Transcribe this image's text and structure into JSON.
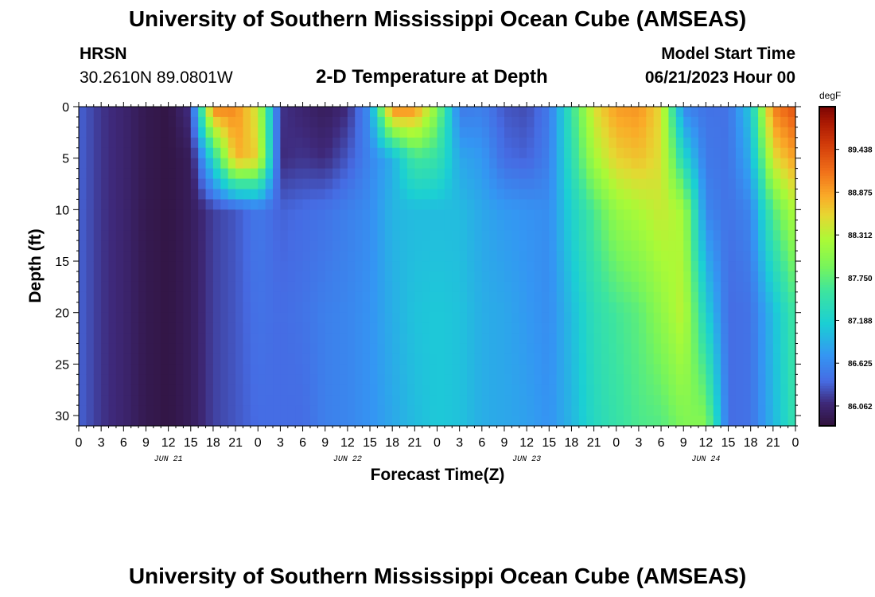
{
  "header": {
    "title": "University of Southern Mississippi Ocean Cube (AMSEAS)",
    "station": "HRSN",
    "location": "30.2610N  89.0801W",
    "subtitle": "2-D Temperature at Depth",
    "model_start_label": "Model Start Time",
    "model_start_value": "06/21/2023 Hour 00"
  },
  "footer": {
    "title": "University of Southern Mississippi Ocean Cube (AMSEAS)"
  },
  "chart_data": {
    "type": "heatmap",
    "title": "2-D Temperature at Depth",
    "xlabel": "Forecast Time(Z)",
    "ylabel": "Depth (ft)",
    "x_range_hours": [
      0,
      96
    ],
    "x_tick_step_hours": 3,
    "x_tick_labels": [
      "0",
      "3",
      "6",
      "9",
      "12",
      "15",
      "18",
      "21",
      "0",
      "3",
      "6",
      "9",
      "12",
      "15",
      "18",
      "21",
      "0",
      "3",
      "6",
      "9",
      "12",
      "15",
      "18",
      "21",
      "0",
      "3",
      "6",
      "9",
      "12",
      "15",
      "18",
      "21",
      "0"
    ],
    "day_labels": [
      {
        "label": "JUN 21",
        "hour": 12
      },
      {
        "label": "JUN 22",
        "hour": 36
      },
      {
        "label": "JUN 23",
        "hour": 60
      },
      {
        "label": "JUN 24",
        "hour": 84
      }
    ],
    "y_range_ft": [
      0,
      31
    ],
    "y_ticks": [
      0,
      5,
      10,
      15,
      20,
      25,
      30
    ],
    "colorbar": {
      "unit": "degF",
      "range": [
        85.8,
        90.0
      ],
      "ticks": [
        "89.438",
        "88.875",
        "88.312",
        "87.750",
        "87.188",
        "86.625",
        "86.062"
      ]
    },
    "x_hours": [
      0,
      3,
      6,
      9,
      12,
      15,
      18,
      21,
      24,
      27,
      30,
      33,
      36,
      39,
      42,
      45,
      48,
      51,
      54,
      57,
      60,
      63,
      66,
      69,
      72,
      75,
      78,
      81,
      84,
      87,
      90,
      93,
      96
    ],
    "depth_ft": [
      0,
      5,
      10,
      20,
      31
    ],
    "temperature_degF": [
      [
        86.35,
        86.35,
        86.35,
        86.35,
        86.35
      ],
      [
        86.15,
        86.15,
        86.15,
        86.15,
        86.15
      ],
      [
        86.05,
        86.05,
        86.05,
        86.05,
        86.05
      ],
      [
        85.9,
        85.9,
        85.9,
        85.9,
        85.9
      ],
      [
        85.85,
        85.85,
        85.85,
        85.85,
        85.85
      ],
      [
        86.15,
        85.95,
        85.95,
        85.95,
        85.95
      ],
      [
        89.1,
        87.3,
        86.2,
        86.2,
        86.2
      ],
      [
        89.0,
        88.8,
        86.3,
        86.3,
        86.3
      ],
      [
        88.4,
        88.6,
        86.5,
        86.45,
        86.4
      ],
      [
        86.15,
        86.1,
        86.35,
        86.4,
        86.4
      ],
      [
        86.05,
        86.15,
        86.4,
        86.45,
        86.4
      ],
      [
        85.95,
        86.1,
        86.45,
        86.55,
        86.55
      ],
      [
        86.1,
        86.3,
        86.55,
        86.6,
        86.6
      ],
      [
        86.7,
        86.6,
        86.65,
        86.7,
        86.7
      ],
      [
        89.1,
        86.9,
        86.95,
        86.9,
        86.85
      ],
      [
        89.0,
        87.6,
        87.0,
        87.05,
        87.0
      ],
      [
        88.0,
        87.5,
        87.0,
        87.1,
        87.1
      ],
      [
        86.5,
        86.85,
        87.0,
        87.05,
        87.05
      ],
      [
        86.55,
        86.75,
        86.85,
        86.9,
        86.9
      ],
      [
        86.3,
        86.4,
        86.75,
        86.85,
        86.85
      ],
      [
        86.25,
        86.35,
        86.7,
        86.75,
        86.8
      ],
      [
        86.5,
        86.55,
        86.65,
        86.65,
        86.7
      ],
      [
        87.5,
        87.4,
        87.2,
        87.0,
        86.95
      ],
      [
        88.5,
        88.2,
        87.65,
        87.4,
        87.3
      ],
      [
        88.9,
        88.6,
        88.1,
        87.6,
        87.5
      ],
      [
        88.95,
        88.7,
        88.25,
        87.75,
        87.65
      ],
      [
        88.55,
        88.5,
        88.4,
        88.05,
        87.7
      ],
      [
        86.6,
        87.3,
        88.2,
        88.35,
        87.95
      ],
      [
        86.45,
        86.5,
        86.6,
        87.2,
        88.0
      ],
      [
        86.45,
        86.45,
        86.45,
        86.4,
        86.4
      ],
      [
        87.1,
        86.9,
        86.6,
        86.45,
        86.45
      ],
      [
        89.05,
        88.5,
        87.7,
        87.0,
        86.95
      ],
      [
        89.35,
        88.9,
        88.3,
        87.6,
        87.5
      ]
    ]
  }
}
